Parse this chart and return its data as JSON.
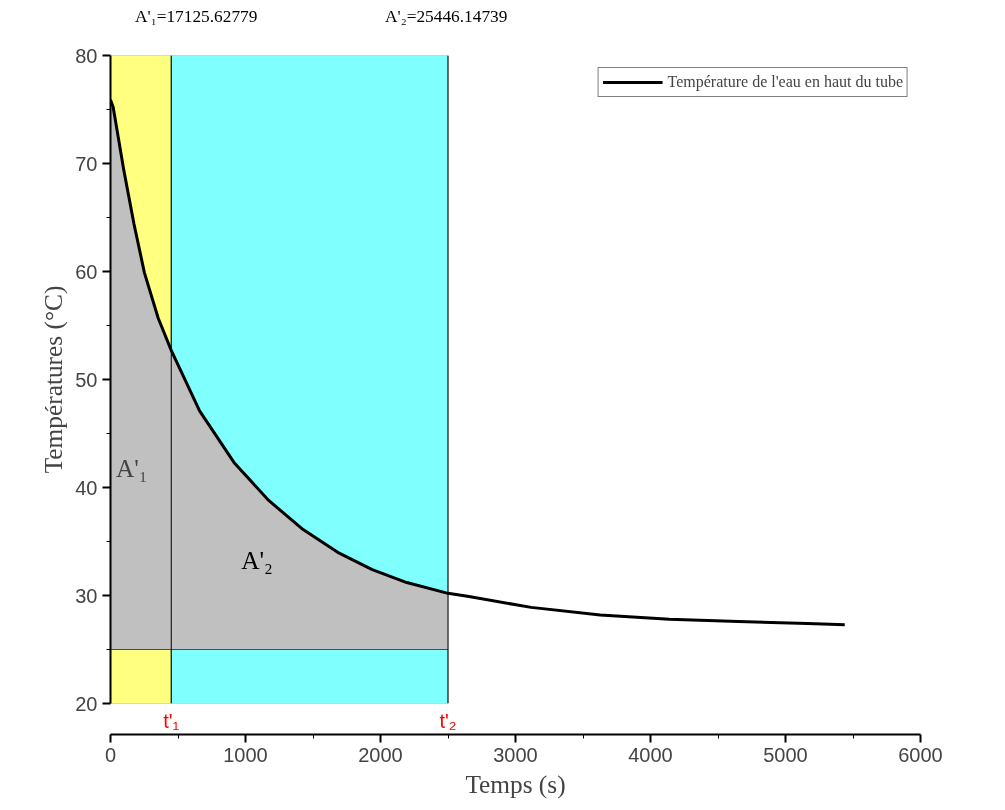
{
  "chart_data": {
    "type": "line",
    "xlabel": "Temps (s)",
    "ylabel": "Températures (°C)",
    "xlim": [
      0,
      6000
    ],
    "xticks": [
      0,
      1000,
      2000,
      3000,
      4000,
      5000,
      6000
    ],
    "ylim": [
      20,
      80
    ],
    "yticks": [
      20,
      30,
      40,
      50,
      60,
      70,
      80
    ],
    "series": [
      {
        "name": "Température de l'eau en haut du tube",
        "color": "#000000",
        "x": [
          0,
          20,
          97,
          174,
          251,
          353,
          450,
          660,
          916,
          1172,
          1427,
          1683,
          1939,
          2195,
          2500,
          2655,
          3116,
          3628,
          4139,
          4651,
          5163,
          5439
        ],
        "values": [
          75.9,
          75.2,
          69.5,
          64.4,
          59.9,
          55.7,
          52.7,
          47.1,
          42.3,
          38.8,
          36.1,
          34.0,
          32.4,
          31.2,
          30.2,
          29.9,
          28.9,
          28.2,
          27.8,
          27.6,
          27.4,
          27.3
        ],
        "lower": [
          25,
          25,
          25,
          25,
          25,
          25,
          25,
          25,
          25,
          25,
          25,
          25,
          25,
          25,
          25,
          null,
          null,
          null,
          null,
          null,
          null,
          null
        ],
        "upper": [
          75.9,
          75.2,
          69.5,
          64.4,
          59.9,
          55.7,
          52.7,
          47.1,
          42.3,
          38.8,
          36.1,
          34.0,
          32.4,
          31.2,
          30.2,
          null,
          null,
          null,
          null,
          null,
          null,
          null
        ]
      }
    ],
    "bands": [
      {
        "axis": "x",
        "from": 0,
        "to": 450,
        "label": null,
        "color": "#ffff80"
      },
      {
        "axis": "x",
        "from": 450,
        "to": 2500,
        "label": "A'₂",
        "color": "#80ffff"
      }
    ],
    "ref_lines": [
      {
        "axis": "x",
        "value": 450,
        "label": "t'₁",
        "color": "#000000"
      },
      {
        "axis": "x",
        "value": 2500,
        "label": "t'₂",
        "color": "#000000"
      },
      {
        "axis": "y",
        "value": 25,
        "label": null,
        "color": "#ff0000"
      }
    ],
    "annotations": [
      "A'₁=17125.62779",
      "A'₂=25446.14739",
      {
        "text": "A'₁",
        "x": 40,
        "y": 40.5
      }
    ],
    "legend": "top right",
    "grid": false,
    "marker": "none",
    "line_style": "solid"
  }
}
